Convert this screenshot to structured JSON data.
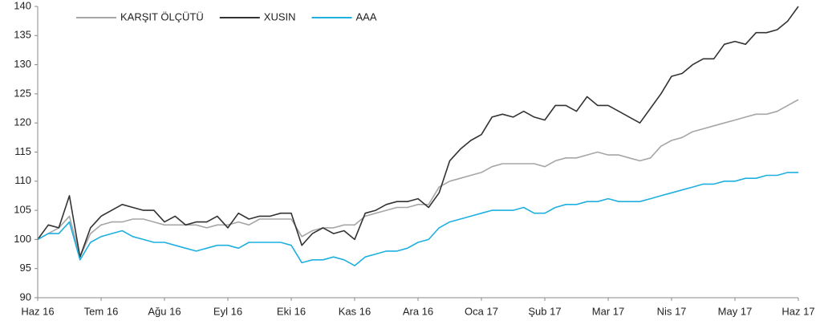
{
  "chart_data": {
    "type": "line",
    "categories": [
      "Haz 16",
      null,
      null,
      null,
      null,
      null,
      "Tem 16",
      null,
      null,
      null,
      null,
      null,
      "Ağu 16",
      null,
      null,
      null,
      null,
      null,
      "Eyl 16",
      null,
      null,
      null,
      null,
      null,
      "Eki 16",
      null,
      null,
      null,
      null,
      null,
      "Kas 16",
      null,
      null,
      null,
      null,
      null,
      "Ara 16",
      null,
      null,
      null,
      null,
      null,
      "Oca 17",
      null,
      null,
      null,
      null,
      null,
      "Şub 17",
      null,
      null,
      null,
      null,
      null,
      "Mar 17",
      null,
      null,
      null,
      null,
      null,
      "Nis 17",
      null,
      null,
      null,
      null,
      null,
      "May 17",
      null,
      null,
      null,
      null,
      null,
      "Haz 17"
    ],
    "series": [
      {
        "name": "KARŞIT ÖLÇÜTÜ",
        "color": "#a6a6a6",
        "values": [
          100,
          101,
          102,
          104,
          97,
          101,
          102.5,
          103,
          103,
          103.5,
          103.5,
          103,
          102.5,
          102.5,
          102.5,
          102.5,
          102,
          102.5,
          102.5,
          103,
          102.5,
          103.5,
          103.5,
          103.5,
          103.5,
          100.5,
          101.5,
          102,
          102,
          102.5,
          102.5,
          104,
          104.5,
          105,
          105.5,
          105.5,
          106,
          106,
          109,
          110,
          110.5,
          111,
          111.5,
          112.5,
          113,
          113,
          113,
          113,
          112.5,
          113.5,
          114,
          114,
          114.5,
          115,
          114.5,
          114.5,
          114,
          113.5,
          114,
          116,
          117,
          117.5,
          118.5,
          119,
          119.5,
          120,
          120.5,
          121,
          121.5,
          121.5,
          122,
          123,
          124
        ]
      },
      {
        "name": "XUSIN",
        "color": "#333333",
        "values": [
          100,
          102.5,
          102,
          107.5,
          97,
          102,
          104,
          105,
          106,
          105.5,
          105,
          105,
          103,
          104,
          102.5,
          103,
          103,
          104,
          102,
          104.5,
          103.5,
          104,
          104,
          104.5,
          104.5,
          99,
          101,
          102,
          101,
          101.5,
          100,
          104.5,
          105,
          106,
          106.5,
          106.5,
          107,
          105.5,
          108,
          113.5,
          115.5,
          117,
          118,
          121,
          121.5,
          121,
          122,
          121,
          120.5,
          123,
          123,
          122,
          124.5,
          123,
          123,
          122,
          121,
          120,
          122.5,
          125,
          128,
          128.5,
          130,
          131,
          131,
          133.5,
          134,
          133.5,
          135.5,
          135.5,
          136,
          137.5,
          140
        ]
      },
      {
        "name": "AAA",
        "color": "#1fb0e0",
        "values": [
          100,
          101,
          101,
          103,
          96.5,
          99.5,
          100.5,
          101,
          101.5,
          100.5,
          100,
          99.5,
          99.5,
          99,
          98.5,
          98,
          98.5,
          99,
          99,
          98.5,
          99.5,
          99.5,
          99.5,
          99.5,
          99,
          96,
          96.5,
          96.5,
          97,
          96.5,
          95.5,
          97,
          97.5,
          98,
          98,
          98.5,
          99.5,
          100,
          102,
          103,
          103.5,
          104,
          104.5,
          105,
          105,
          105,
          105.5,
          104.5,
          104.5,
          105.5,
          106,
          106,
          106.5,
          106.5,
          107,
          106.5,
          106.5,
          106.5,
          107,
          107.5,
          108,
          108.5,
          109,
          109.5,
          109.5,
          110,
          110,
          110.5,
          110.5,
          111,
          111,
          111.5,
          111.5
        ]
      }
    ],
    "ylim": [
      90,
      140
    ],
    "yticks": [
      90,
      95,
      100,
      105,
      110,
      115,
      120,
      125,
      130,
      135,
      140
    ],
    "grid": false,
    "legend": "top"
  }
}
